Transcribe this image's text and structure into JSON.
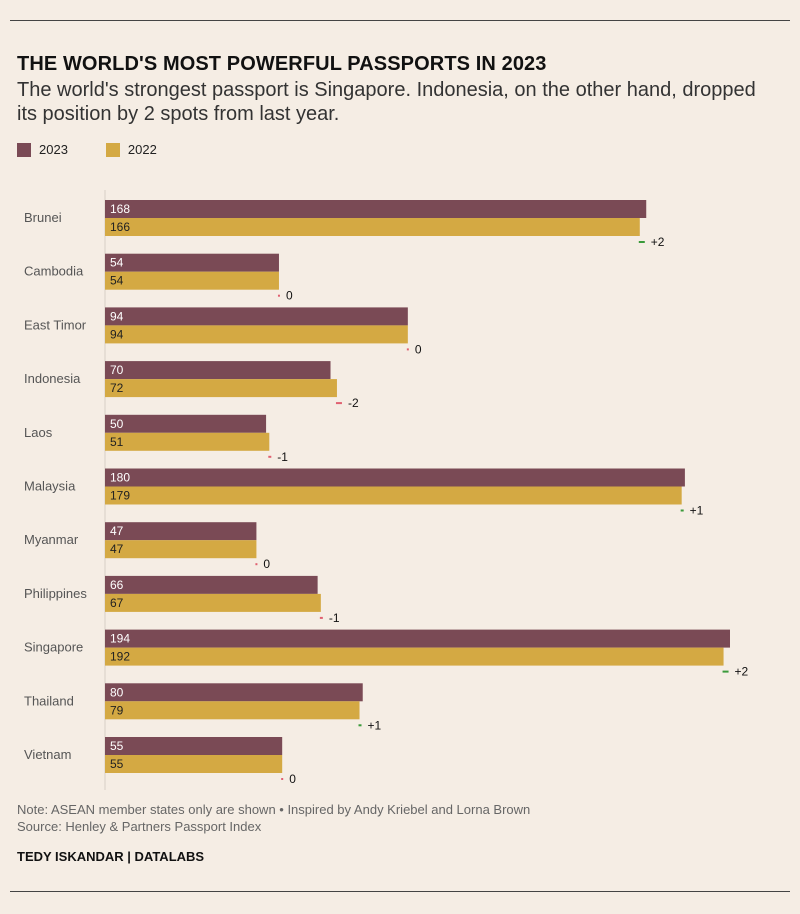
{
  "header": {
    "title": "THE WORLD'S MOST POWERFUL PASSPORTS IN 2023",
    "subtitle": "The world's strongest passport is Singapore. Indonesia, on the other hand, dropped its position by 2 spots from last year."
  },
  "legend": {
    "items": [
      {
        "label": "2023",
        "color": "#7a4a55"
      },
      {
        "label": "2022",
        "color": "#d4a943"
      }
    ]
  },
  "colors": {
    "bar_2023": "#7a4a55",
    "bar_2022": "#d4a943",
    "positive_change": "#3a9a3a",
    "negative_change": "#e06070",
    "zero_change": "#e06070"
  },
  "chart_data": {
    "type": "bar",
    "orientation": "horizontal",
    "categories": [
      "Brunei",
      "Cambodia",
      "East Timor",
      "Indonesia",
      "Laos",
      "Malaysia",
      "Myanmar",
      "Philippines",
      "Singapore",
      "Thailand",
      "Vietnam"
    ],
    "series": [
      {
        "name": "2023",
        "values": [
          168,
          54,
          94,
          70,
          50,
          180,
          47,
          66,
          194,
          80,
          55
        ]
      },
      {
        "name": "2022",
        "values": [
          166,
          54,
          94,
          72,
          51,
          179,
          47,
          67,
          192,
          79,
          55
        ]
      }
    ],
    "change_labels": [
      "+2",
      "0",
      "0",
      "-2",
      "-1",
      "+1",
      "0",
      "-1",
      "+2",
      "+1",
      "0"
    ],
    "xlim": [
      0,
      194
    ],
    "grid": false
  },
  "footer": {
    "note": "Note: ASEAN member states only are shown • Inspired by Andy Kriebel and Lorna Brown",
    "source": "Source: Henley & Partners Passport Index",
    "credit": "TEDY ISKANDAR | DATALABS"
  }
}
